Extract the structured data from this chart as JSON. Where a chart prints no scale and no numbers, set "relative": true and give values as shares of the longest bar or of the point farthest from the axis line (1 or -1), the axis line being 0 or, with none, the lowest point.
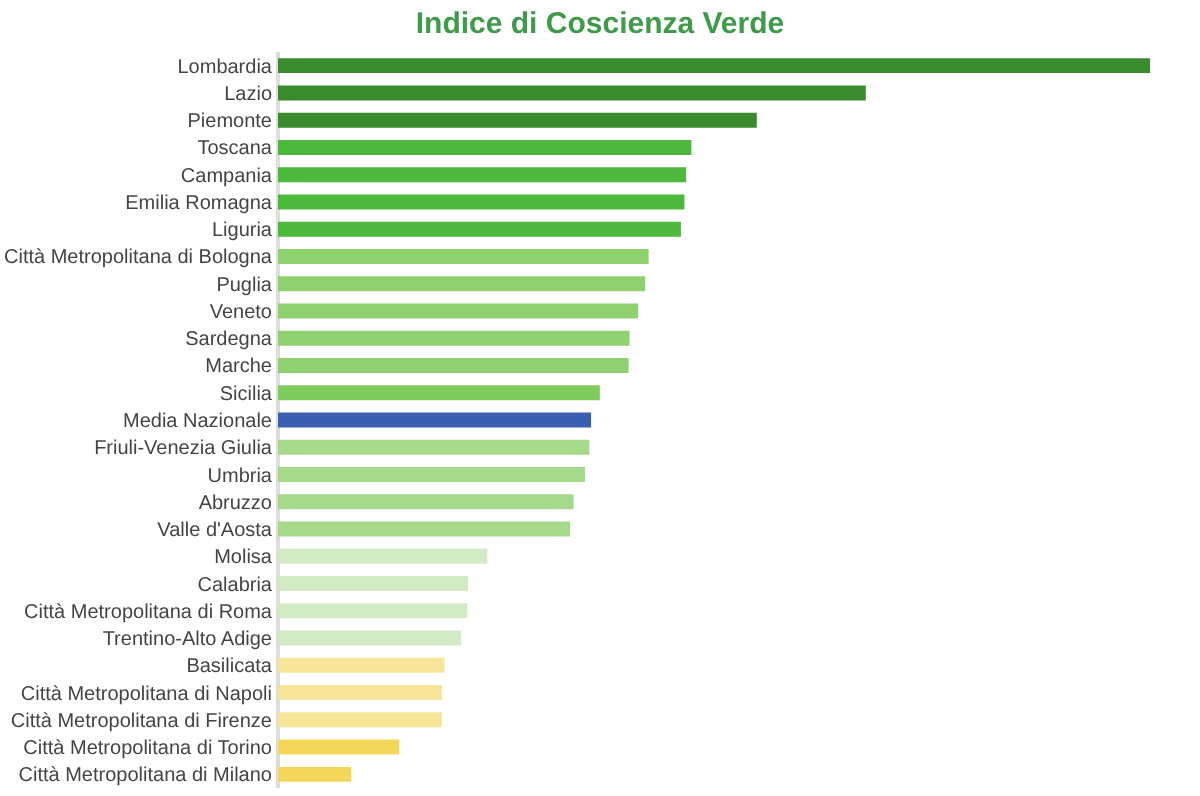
{
  "chart_data": {
    "type": "bar",
    "orientation": "horizontal",
    "relative": true,
    "title": "Indice di Coscienza Verde",
    "categories": [
      "Lombardia",
      "Lazio",
      "Piemonte",
      "Toscana",
      "Campania",
      "Emilia Romagna",
      "Liguria",
      "Città Metropolitana di Bologna",
      "Puglia",
      "Veneto",
      "Sardegna",
      "Marche",
      "Sicilia",
      "Media Nazionale",
      "Friuli-Venezia Giulia",
      "Umbria",
      "Abruzzo",
      "Valle d'Aosta",
      "Molisa",
      "Calabria",
      "Città Metropolitana di Roma",
      "Trentino-Alto Adige",
      "Basilicata",
      "Città Metropolitana di Napoli",
      "Città Metropolitana di Firenze",
      "Città Metropolitana di Torino",
      "Città Metropolitana di Milano"
    ],
    "values": [
      1,
      0.674,
      0.549,
      0.474,
      0.468,
      0.466,
      0.462,
      0.425,
      0.421,
      0.413,
      0.403,
      0.402,
      0.369,
      0.359,
      0.357,
      0.352,
      0.339,
      0.335,
      0.24,
      0.218,
      0.217,
      0.21,
      0.191,
      0.188,
      0.188,
      0.139,
      0.084
    ],
    "colors": [
      "#3a8a2e",
      "#3a8a2e",
      "#3a8a2e",
      "#4cb83c",
      "#4cb83c",
      "#4cb83c",
      "#4cb83c",
      "#8fd06f",
      "#8fd06f",
      "#8fd06f",
      "#8fd06f",
      "#8fd06f",
      "#7fcb5c",
      "#3a5fb0",
      "#a5da8a",
      "#a5da8a",
      "#a5da8a",
      "#a5da8a",
      "#d3ebc4",
      "#d3ebc4",
      "#d3ebc4",
      "#d3ebc4",
      "#f7e69a",
      "#f7e69a",
      "#f7e69a",
      "#f2d75a",
      "#f2d75a"
    ]
  }
}
